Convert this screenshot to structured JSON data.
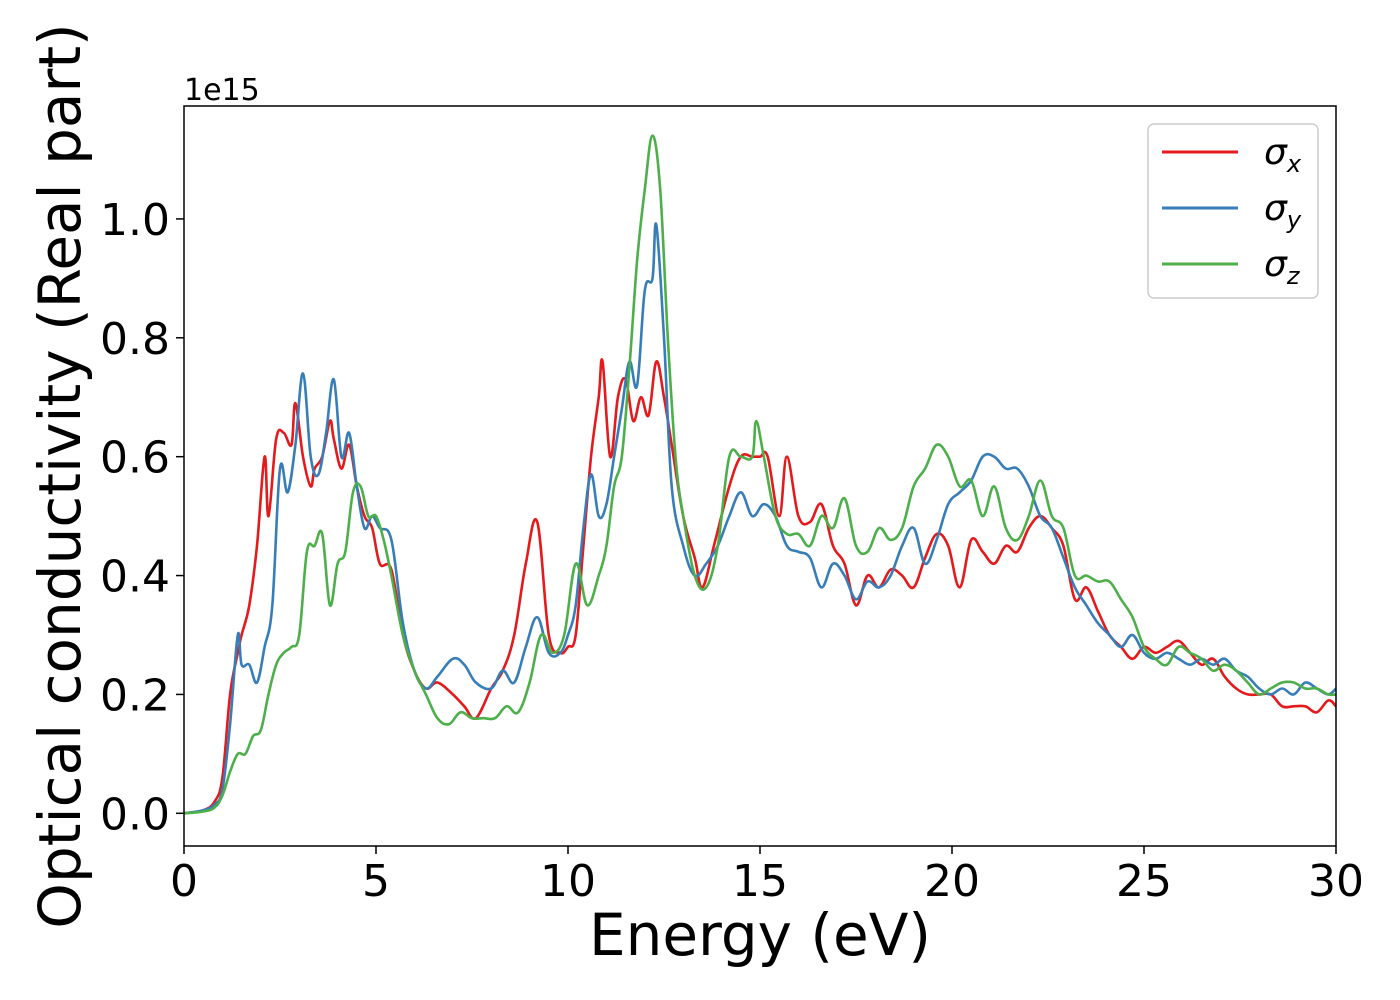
{
  "chart_data": {
    "type": "line",
    "title": "",
    "xlabel": "Energy (eV)",
    "ylabel": "Optical conductivity (Real part)",
    "y_offset_label": "1e15",
    "xlim": [
      0,
      30
    ],
    "ylim": [
      -0.055,
      1.19
    ],
    "x_ticks": [
      0,
      5,
      10,
      15,
      20,
      25,
      30
    ],
    "x_tick_labels": [
      "0",
      "5",
      "10",
      "15",
      "20",
      "25",
      "30"
    ],
    "y_ticks": [
      0.0,
      0.2,
      0.4,
      0.6,
      0.8,
      1.0
    ],
    "y_tick_labels": [
      "0.0",
      "0.2",
      "0.4",
      "0.6",
      "0.8",
      "1.0"
    ],
    "grid": false,
    "legend_position": "top-right",
    "series": [
      {
        "name": "σ",
        "subscript": "x",
        "color": "#e41a1c",
        "x": [
          0,
          0.5,
          0.8,
          1.0,
          1.2,
          1.4,
          1.5,
          1.7,
          1.9,
          2.1,
          2.2,
          2.4,
          2.6,
          2.8,
          2.9,
          3.1,
          3.3,
          3.4,
          3.6,
          3.8,
          3.9,
          4.1,
          4.3,
          4.5,
          4.7,
          4.9,
          5.1,
          5.4,
          5.7,
          6.0,
          6.3,
          6.6,
          7.0,
          7.3,
          7.6,
          8.0,
          8.3,
          8.6,
          8.9,
          9.2,
          9.5,
          9.8,
          10.0,
          10.2,
          10.4,
          10.6,
          10.8,
          10.9,
          11.1,
          11.3,
          11.5,
          11.7,
          11.9,
          12.1,
          12.3,
          12.5,
          12.7,
          13.0,
          13.3,
          13.5,
          13.8,
          14.2,
          14.5,
          14.8,
          15.0,
          15.2,
          15.5,
          15.7,
          16.0,
          16.3,
          16.6,
          16.9,
          17.2,
          17.5,
          17.8,
          18.1,
          18.4,
          18.7,
          19.0,
          19.3,
          19.6,
          19.9,
          20.2,
          20.5,
          20.8,
          21.1,
          21.4,
          21.7,
          22.0,
          22.3,
          22.6,
          22.9,
          23.2,
          23.5,
          23.8,
          24.1,
          24.4,
          24.7,
          25.0,
          25.3,
          25.6,
          25.9,
          26.2,
          26.5,
          26.8,
          27.1,
          27.4,
          27.7,
          28.0,
          28.3,
          28.6,
          28.9,
          29.2,
          29.5,
          29.8,
          30.0
        ],
        "y": [
          0.0,
          0.005,
          0.02,
          0.06,
          0.2,
          0.27,
          0.3,
          0.35,
          0.45,
          0.6,
          0.5,
          0.63,
          0.64,
          0.62,
          0.69,
          0.6,
          0.55,
          0.58,
          0.6,
          0.66,
          0.63,
          0.58,
          0.62,
          0.55,
          0.5,
          0.48,
          0.42,
          0.41,
          0.3,
          0.24,
          0.21,
          0.22,
          0.2,
          0.18,
          0.16,
          0.21,
          0.24,
          0.3,
          0.42,
          0.49,
          0.3,
          0.27,
          0.28,
          0.3,
          0.45,
          0.6,
          0.7,
          0.76,
          0.6,
          0.7,
          0.73,
          0.66,
          0.7,
          0.67,
          0.76,
          0.7,
          0.62,
          0.5,
          0.43,
          0.38,
          0.45,
          0.55,
          0.6,
          0.6,
          0.6,
          0.6,
          0.5,
          0.6,
          0.5,
          0.49,
          0.52,
          0.45,
          0.42,
          0.35,
          0.4,
          0.38,
          0.41,
          0.4,
          0.38,
          0.43,
          0.47,
          0.45,
          0.38,
          0.46,
          0.44,
          0.42,
          0.45,
          0.44,
          0.48,
          0.5,
          0.48,
          0.45,
          0.36,
          0.38,
          0.34,
          0.3,
          0.28,
          0.26,
          0.28,
          0.27,
          0.28,
          0.29,
          0.27,
          0.25,
          0.26,
          0.23,
          0.21,
          0.2,
          0.2,
          0.2,
          0.18,
          0.18,
          0.18,
          0.17,
          0.19,
          0.18
        ]
      },
      {
        "name": "σ",
        "subscript": "y",
        "color": "#377eb8",
        "x": [
          0,
          0.5,
          0.8,
          1.0,
          1.2,
          1.4,
          1.5,
          1.7,
          1.9,
          2.1,
          2.3,
          2.5,
          2.7,
          2.9,
          3.1,
          3.3,
          3.5,
          3.7,
          3.9,
          4.1,
          4.3,
          4.5,
          4.7,
          4.9,
          5.1,
          5.4,
          5.7,
          6.0,
          6.3,
          6.6,
          7.0,
          7.3,
          7.6,
          8.0,
          8.3,
          8.6,
          8.9,
          9.2,
          9.5,
          9.8,
          10.0,
          10.2,
          10.4,
          10.6,
          10.8,
          11.0,
          11.2,
          11.4,
          11.6,
          11.8,
          12.0,
          12.2,
          12.3,
          12.5,
          12.7,
          13.0,
          13.3,
          13.6,
          13.9,
          14.2,
          14.5,
          14.8,
          15.1,
          15.4,
          15.7,
          16.0,
          16.3,
          16.6,
          16.9,
          17.2,
          17.5,
          17.8,
          18.1,
          18.4,
          18.7,
          19.0,
          19.3,
          19.6,
          19.9,
          20.2,
          20.5,
          20.8,
          21.1,
          21.4,
          21.7,
          22.0,
          22.3,
          22.6,
          22.9,
          23.2,
          23.5,
          23.8,
          24.1,
          24.4,
          24.7,
          25.0,
          25.3,
          25.6,
          25.9,
          26.2,
          26.5,
          26.8,
          27.1,
          27.4,
          27.7,
          28.0,
          28.3,
          28.6,
          28.9,
          29.2,
          29.5,
          29.8,
          30.0
        ],
        "y": [
          0.0,
          0.005,
          0.015,
          0.04,
          0.15,
          0.3,
          0.25,
          0.25,
          0.22,
          0.28,
          0.35,
          0.58,
          0.54,
          0.62,
          0.74,
          0.6,
          0.57,
          0.64,
          0.73,
          0.6,
          0.64,
          0.55,
          0.48,
          0.5,
          0.48,
          0.46,
          0.32,
          0.24,
          0.21,
          0.23,
          0.26,
          0.25,
          0.22,
          0.21,
          0.24,
          0.22,
          0.28,
          0.33,
          0.27,
          0.27,
          0.3,
          0.35,
          0.48,
          0.57,
          0.5,
          0.52,
          0.6,
          0.68,
          0.76,
          0.72,
          0.88,
          0.9,
          0.99,
          0.8,
          0.55,
          0.45,
          0.4,
          0.42,
          0.45,
          0.5,
          0.54,
          0.5,
          0.52,
          0.5,
          0.45,
          0.44,
          0.43,
          0.38,
          0.42,
          0.4,
          0.36,
          0.39,
          0.38,
          0.4,
          0.45,
          0.48,
          0.42,
          0.46,
          0.52,
          0.54,
          0.56,
          0.6,
          0.6,
          0.58,
          0.58,
          0.55,
          0.5,
          0.48,
          0.43,
          0.38,
          0.35,
          0.32,
          0.3,
          0.28,
          0.3,
          0.27,
          0.26,
          0.27,
          0.26,
          0.25,
          0.26,
          0.25,
          0.26,
          0.24,
          0.23,
          0.21,
          0.2,
          0.21,
          0.2,
          0.22,
          0.21,
          0.2,
          0.21
        ]
      },
      {
        "name": "σ",
        "subscript": "z",
        "color": "#4daf4a",
        "x": [
          0,
          0.5,
          0.8,
          1.0,
          1.2,
          1.4,
          1.6,
          1.8,
          2.0,
          2.2,
          2.4,
          2.6,
          2.8,
          3.0,
          3.2,
          3.4,
          3.6,
          3.8,
          4.0,
          4.2,
          4.4,
          4.6,
          4.8,
          5.0,
          5.2,
          5.4,
          5.7,
          6.0,
          6.3,
          6.6,
          6.9,
          7.2,
          7.5,
          7.8,
          8.1,
          8.4,
          8.7,
          9.0,
          9.3,
          9.6,
          9.9,
          10.2,
          10.5,
          10.8,
          11.0,
          11.2,
          11.4,
          11.6,
          11.8,
          12.0,
          12.2,
          12.4,
          12.6,
          12.8,
          13.0,
          13.3,
          13.6,
          13.9,
          14.2,
          14.5,
          14.8,
          14.9,
          15.1,
          15.4,
          15.7,
          16.0,
          16.3,
          16.6,
          16.9,
          17.2,
          17.5,
          17.8,
          18.1,
          18.4,
          18.7,
          19.0,
          19.3,
          19.6,
          19.9,
          20.2,
          20.5,
          20.8,
          21.1,
          21.4,
          21.7,
          22.0,
          22.3,
          22.6,
          22.9,
          23.2,
          23.5,
          23.8,
          24.1,
          24.4,
          24.7,
          25.0,
          25.3,
          25.6,
          25.9,
          26.2,
          26.5,
          26.8,
          27.1,
          27.4,
          27.7,
          28.0,
          28.3,
          28.6,
          28.9,
          29.2,
          29.5,
          29.8,
          30.0
        ],
        "y": [
          0.0,
          0.003,
          0.01,
          0.03,
          0.07,
          0.1,
          0.1,
          0.13,
          0.14,
          0.2,
          0.25,
          0.27,
          0.28,
          0.3,
          0.44,
          0.45,
          0.47,
          0.35,
          0.42,
          0.44,
          0.54,
          0.55,
          0.5,
          0.5,
          0.46,
          0.4,
          0.3,
          0.24,
          0.2,
          0.16,
          0.15,
          0.17,
          0.16,
          0.16,
          0.16,
          0.18,
          0.17,
          0.22,
          0.3,
          0.27,
          0.3,
          0.42,
          0.35,
          0.4,
          0.45,
          0.55,
          0.6,
          0.75,
          0.93,
          1.05,
          1.14,
          1.05,
          0.8,
          0.6,
          0.5,
          0.4,
          0.38,
          0.45,
          0.6,
          0.6,
          0.6,
          0.66,
          0.6,
          0.5,
          0.47,
          0.47,
          0.45,
          0.5,
          0.48,
          0.53,
          0.45,
          0.44,
          0.48,
          0.46,
          0.48,
          0.55,
          0.58,
          0.62,
          0.6,
          0.55,
          0.56,
          0.5,
          0.55,
          0.48,
          0.46,
          0.5,
          0.56,
          0.5,
          0.48,
          0.4,
          0.4,
          0.39,
          0.39,
          0.36,
          0.33,
          0.28,
          0.26,
          0.25,
          0.28,
          0.27,
          0.26,
          0.24,
          0.25,
          0.24,
          0.22,
          0.2,
          0.21,
          0.22,
          0.22,
          0.21,
          0.21,
          0.2,
          0.2
        ]
      }
    ]
  }
}
